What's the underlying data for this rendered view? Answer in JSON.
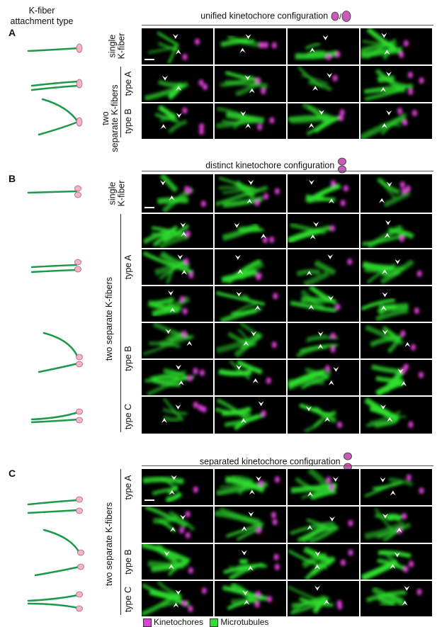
{
  "column_title": "K-fiber\nattachment type",
  "colors": {
    "kinetochore": "#e040d8",
    "microtubule": "#2ee02e",
    "fiber": "#1a9a4a",
    "kt_pink": "#f3b3c8"
  },
  "legend": {
    "kinetochores": "Kinetochores",
    "microtubules": "Microtubules"
  },
  "panels": [
    {
      "id": "A",
      "label": "A",
      "title": "unified kinetochore configuration",
      "title_icons": [
        "kt-oval-small",
        "/",
        "kt-oval-large"
      ],
      "groups": [
        {
          "label": "single\nK-fiber",
          "rows": [
            "single"
          ]
        },
        {
          "label": "two\nseparate K-fibers",
          "rows": [
            "type A",
            "type B"
          ]
        }
      ]
    },
    {
      "id": "B",
      "label": "B",
      "title": "distinct kinetochore configuration",
      "groups": [
        {
          "label": "single\nK-fiber",
          "rows": [
            "single"
          ]
        },
        {
          "label": "two separate K-fibers",
          "rows": [
            "type A",
            "type B",
            "type C"
          ]
        }
      ]
    },
    {
      "id": "C",
      "label": "C",
      "title": "separated kinetochore configuration",
      "groups": [
        {
          "label": "two separate K-fibers",
          "rows": [
            "type A",
            "type B",
            "type C"
          ]
        }
      ]
    }
  ]
}
